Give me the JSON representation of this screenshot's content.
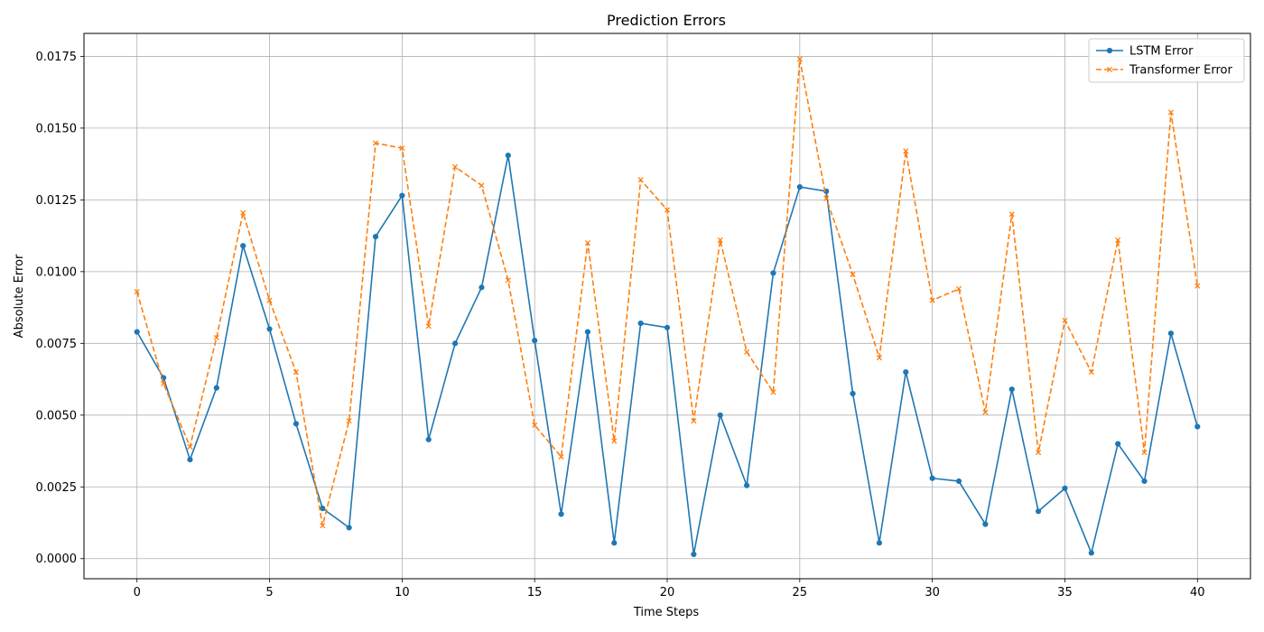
{
  "chart_data": {
    "type": "line",
    "title": "Prediction Errors",
    "xlabel": "Time Steps",
    "ylabel": "Absolute Error",
    "x": [
      0,
      1,
      2,
      3,
      4,
      5,
      6,
      7,
      8,
      9,
      10,
      11,
      12,
      13,
      14,
      15,
      16,
      17,
      18,
      19,
      20,
      21,
      22,
      23,
      24,
      25,
      26,
      27,
      28,
      29,
      30,
      31,
      32,
      33,
      34,
      35,
      36,
      37,
      38,
      39,
      40
    ],
    "xlim": [
      -2,
      42
    ],
    "ylim": [
      -0.0007,
      0.0183
    ],
    "xticks": [
      0,
      5,
      10,
      15,
      20,
      25,
      30,
      35,
      40
    ],
    "yticks": [
      0.0,
      0.0025,
      0.005,
      0.0075,
      0.01,
      0.0125,
      0.015,
      0.0175
    ],
    "ytick_labels": [
      "0.0000",
      "0.0025",
      "0.0050",
      "0.0075",
      "0.0100",
      "0.0125",
      "0.0150",
      "0.0175"
    ],
    "grid": true,
    "legend_position": "top-right",
    "series": [
      {
        "name": "LSTM Error",
        "color": "#1f77b4",
        "linestyle": "solid",
        "marker": "circle",
        "values": [
          0.0079,
          0.0063,
          0.00345,
          0.00595,
          0.0109,
          0.008,
          0.0047,
          0.00175,
          0.00108,
          0.01122,
          0.01265,
          0.00415,
          0.0075,
          0.00945,
          0.01405,
          0.0076,
          0.00155,
          0.0079,
          0.00055,
          0.0082,
          0.00805,
          0.00015,
          0.005,
          0.00255,
          0.00995,
          0.01295,
          0.0128,
          0.00575,
          0.00055,
          0.0065,
          0.0028,
          0.0027,
          0.0012,
          0.0059,
          0.00165,
          0.00245,
          0.0002,
          0.004,
          0.0027,
          0.00785,
          0.0046
        ]
      },
      {
        "name": "Transformer Error",
        "color": "#ff7f0e",
        "linestyle": "dashed",
        "marker": "x",
        "values": [
          0.0093,
          0.0061,
          0.0039,
          0.0077,
          0.01205,
          0.009,
          0.0065,
          0.00115,
          0.0048,
          0.01448,
          0.0143,
          0.0081,
          0.01365,
          0.013,
          0.0097,
          0.00465,
          0.00355,
          0.011,
          0.0041,
          0.0132,
          0.01215,
          0.0048,
          0.0111,
          0.0072,
          0.0058,
          0.0174,
          0.01255,
          0.0099,
          0.007,
          0.0142,
          0.009,
          0.0094,
          0.0051,
          0.012,
          0.0037,
          0.0083,
          0.0065,
          0.0111,
          0.0037,
          0.01555,
          0.0095
        ]
      }
    ]
  }
}
